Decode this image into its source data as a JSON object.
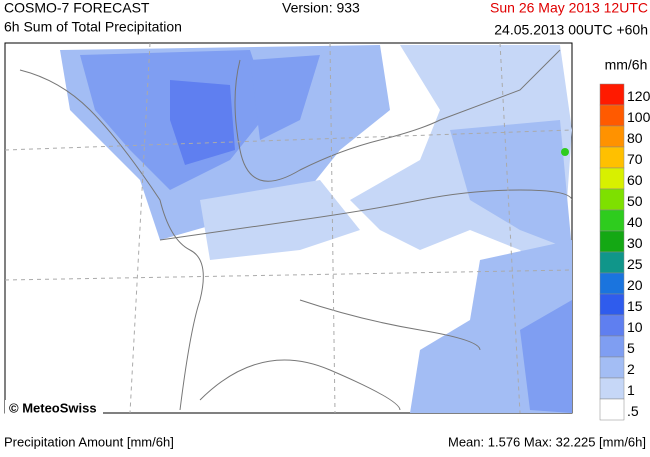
{
  "header": {
    "title": "COSMO-7 FORECAST",
    "subtitle": "6h Sum of Total Precipitation",
    "version": "Version: 933",
    "valid_time": "Sun 26 May 2013 12UTC",
    "run_time": "24.05.2013 00UTC +60h"
  },
  "map": {
    "credit": "© MeteoSwiss"
  },
  "legend": {
    "unit": "mm/6h",
    "items": [
      {
        "label": "120",
        "color": "#ff1a00"
      },
      {
        "label": "100",
        "color": "#ff5a00"
      },
      {
        "label": "80",
        "color": "#ff9200"
      },
      {
        "label": "70",
        "color": "#ffc000"
      },
      {
        "label": "60",
        "color": "#d8f000"
      },
      {
        "label": "50",
        "color": "#7ee000"
      },
      {
        "label": "40",
        "color": "#2ecc1e"
      },
      {
        "label": "30",
        "color": "#14a814"
      },
      {
        "label": "25",
        "color": "#10968a"
      },
      {
        "label": "20",
        "color": "#1a74de"
      },
      {
        "label": "15",
        "color": "#2f5ced"
      },
      {
        "label": "10",
        "color": "#5f7ff0"
      },
      {
        "label": "5",
        "color": "#7f9ef2"
      },
      {
        "label": "2",
        "color": "#a3bdf4"
      },
      {
        "label": "1",
        "color": "#c6d7f7"
      },
      {
        "label": ".5",
        "color": "#ffffff"
      }
    ]
  },
  "footer": {
    "left": "Precipitation Amount [mm/6h]",
    "right": "Mean:  1.576 Max:  32.225 [mm/6h]"
  }
}
